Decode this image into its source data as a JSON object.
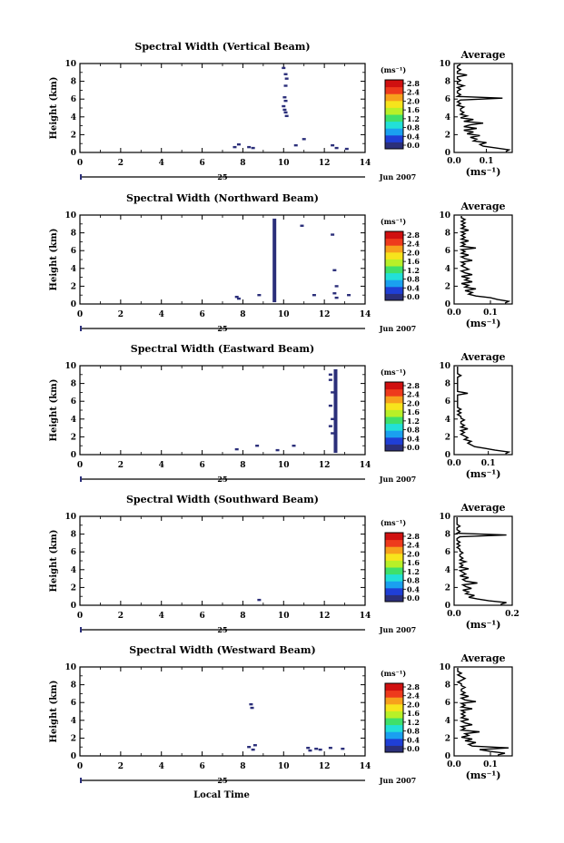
{
  "figure": {
    "xlabel": "Local Time",
    "date_label": "Jun 2007",
    "day_label": "25",
    "colorbar_unit": "(ms⁻¹)",
    "colorbar_ticks": [
      "0.0",
      "0.4",
      "0.8",
      "1.2",
      "1.6",
      "2.0",
      "2.4",
      "2.8"
    ],
    "colorbar_colors": [
      "#2b2f7a",
      "#1f3fd6",
      "#1aa0f0",
      "#22e0d8",
      "#3fe06a",
      "#b8f028",
      "#f7e41c",
      "#f7a01c",
      "#ee3a1c",
      "#d01010"
    ],
    "avg_title": "Average",
    "avg_xunit": "(ms⁻¹)",
    "data_color": "#2b2f7a"
  },
  "chart_data": [
    {
      "type": "heatmap",
      "title": "Spectral Width (Vertical Beam)",
      "ylabel": "Height (km)",
      "xlim": [
        0,
        14
      ],
      "ylim": [
        0,
        10
      ],
      "xticks": [
        "0",
        "2",
        "4",
        "6",
        "8",
        "10",
        "12",
        "14"
      ],
      "yticks": [
        "0",
        "2",
        "4",
        "6",
        "8",
        "10"
      ],
      "cells": [
        [
          7.6,
          0.6
        ],
        [
          7.8,
          0.9
        ],
        [
          8.3,
          0.6
        ],
        [
          8.5,
          0.5
        ],
        [
          10.0,
          9.5
        ],
        [
          10.1,
          8.8
        ],
        [
          10.15,
          8.3
        ],
        [
          10.1,
          7.5
        ],
        [
          10.05,
          6.2
        ],
        [
          10.1,
          5.8
        ],
        [
          10.0,
          5.2
        ],
        [
          10.05,
          4.8
        ],
        [
          10.1,
          4.5
        ],
        [
          10.15,
          4.1
        ],
        [
          10.6,
          0.8
        ],
        [
          11.0,
          1.5
        ],
        [
          12.4,
          0.8
        ],
        [
          12.6,
          0.5
        ],
        [
          13.1,
          0.4
        ]
      ],
      "avg": {
        "xlim": [
          0,
          0.18
        ],
        "xticks": [
          "0.0",
          "0.1"
        ],
        "xtick_vals": [
          0,
          0.1
        ],
        "yticks": [
          "0",
          "2",
          "4",
          "6",
          "8",
          "10"
        ],
        "profile": [
          0.16,
          0.17,
          0.13,
          0.09,
          0.08,
          0.1,
          0.06,
          0.07,
          0.05,
          0.08,
          0.04,
          0.06,
          0.03,
          0.07,
          0.03,
          0.05,
          0.09,
          0.03,
          0.06,
          0.02,
          0.04,
          0.02,
          0.03,
          0.02,
          0.02,
          0.03,
          0.01,
          0.02,
          0.01,
          0.02,
          0.15,
          0.01,
          0.02,
          0.01,
          0.01,
          0.02,
          0.01,
          0.03,
          0.01,
          0.01,
          0.02,
          0.01,
          0.01,
          0.04,
          0.01,
          0.01,
          0.02,
          0.01,
          0.01,
          0.02
        ]
      }
    },
    {
      "type": "heatmap",
      "title": "Spectral Width (Northward Beam)",
      "ylabel": "Height (km)",
      "xlim": [
        0,
        14
      ],
      "ylim": [
        0,
        10
      ],
      "xticks": [
        "0",
        "2",
        "4",
        "6",
        "8",
        "10",
        "12",
        "14"
      ],
      "yticks": [
        "0",
        "2",
        "4",
        "6",
        "8",
        "10"
      ],
      "column": {
        "x": 9.55,
        "y0": 0.2,
        "y1": 9.6
      },
      "cells": [
        [
          7.7,
          0.8
        ],
        [
          7.8,
          0.6
        ],
        [
          8.8,
          1.0
        ],
        [
          10.9,
          8.8
        ],
        [
          11.5,
          1.0
        ],
        [
          12.4,
          7.8
        ],
        [
          12.5,
          3.8
        ],
        [
          12.6,
          2.0
        ],
        [
          12.5,
          1.2
        ],
        [
          12.6,
          0.7
        ],
        [
          13.2,
          1.0
        ]
      ],
      "avg": {
        "xlim": [
          0,
          0.16
        ],
        "xticks": [
          "0.0",
          "0.1"
        ],
        "xtick_vals": [
          0,
          0.1
        ],
        "yticks": [
          "0",
          "2",
          "4",
          "6",
          "8",
          "10"
        ],
        "profile": [
          0.14,
          0.15,
          0.12,
          0.1,
          0.06,
          0.04,
          0.05,
          0.03,
          0.06,
          0.03,
          0.04,
          0.02,
          0.05,
          0.03,
          0.04,
          0.02,
          0.05,
          0.03,
          0.02,
          0.04,
          0.03,
          0.02,
          0.03,
          0.02,
          0.05,
          0.03,
          0.02,
          0.04,
          0.02,
          0.03,
          0.02,
          0.06,
          0.02,
          0.03,
          0.02,
          0.04,
          0.02,
          0.03,
          0.02,
          0.03,
          0.02,
          0.04,
          0.02,
          0.03,
          0.02,
          0.03,
          0.02,
          0.03,
          0.02,
          0.02
        ]
      }
    },
    {
      "type": "heatmap",
      "title": "Spectral Width (Eastward Beam)",
      "ylabel": "Height (km)",
      "xlim": [
        0,
        14
      ],
      "ylim": [
        0,
        10
      ],
      "xticks": [
        "0",
        "2",
        "4",
        "6",
        "8",
        "10",
        "12",
        "14"
      ],
      "yticks": [
        "0",
        "2",
        "4",
        "6",
        "8",
        "10"
      ],
      "column": {
        "x": 12.55,
        "y0": 0.2,
        "y1": 9.6
      },
      "cells": [
        [
          7.7,
          0.6
        ],
        [
          8.7,
          1.0
        ],
        [
          9.7,
          0.5
        ],
        [
          10.5,
          1.0
        ],
        [
          12.3,
          9.0
        ],
        [
          12.3,
          8.4
        ],
        [
          12.4,
          7.0
        ],
        [
          12.3,
          5.5
        ],
        [
          12.4,
          4.0
        ],
        [
          12.3,
          3.2
        ],
        [
          12.4,
          2.4
        ]
      ],
      "avg": {
        "xlim": [
          0,
          0.17
        ],
        "xticks": [
          "0.0",
          "0.1"
        ],
        "xtick_vals": [
          0,
          0.1
        ],
        "yticks": [
          "0",
          "2",
          "4",
          "6",
          "8",
          "10"
        ],
        "profile": [
          0.15,
          0.16,
          0.12,
          0.09,
          0.06,
          0.05,
          0.04,
          0.05,
          0.03,
          0.04,
          0.03,
          0.02,
          0.03,
          0.02,
          0.04,
          0.02,
          0.03,
          0.02,
          0.02,
          0.03,
          0.02,
          0.02,
          0.01,
          0.02,
          0.01,
          0.02,
          0.01,
          0.01,
          0.01,
          0.01,
          0.01,
          0.01,
          0.01,
          0.01,
          0.04,
          0.01,
          0.01,
          0.01,
          0.01,
          0.01,
          0.01,
          0.01,
          0.01,
          0.01,
          0.02,
          0.01,
          0.01,
          0.01,
          0.01,
          0.01
        ]
      }
    },
    {
      "type": "heatmap",
      "title": "Spectral Width (Southward Beam)",
      "ylabel": "Height (km)",
      "xlim": [
        0,
        14
      ],
      "ylim": [
        0,
        10
      ],
      "xticks": [
        "0",
        "2",
        "4",
        "6",
        "8",
        "10",
        "12",
        "14"
      ],
      "yticks": [
        "0",
        "2",
        "4",
        "6",
        "8",
        "10"
      ],
      "cells": [
        [
          8.8,
          0.6
        ]
      ],
      "avg": {
        "xlim": [
          0,
          0.2
        ],
        "xticks": [
          "0.0",
          "0.2"
        ],
        "xtick_vals": [
          0,
          0.2
        ],
        "yticks": [
          "0",
          "2",
          "4",
          "6",
          "8",
          "10"
        ],
        "profile": [
          0.16,
          0.18,
          0.12,
          0.08,
          0.05,
          0.07,
          0.04,
          0.05,
          0.03,
          0.06,
          0.04,
          0.03,
          0.08,
          0.04,
          0.03,
          0.05,
          0.02,
          0.04,
          0.03,
          0.02,
          0.05,
          0.02,
          0.03,
          0.02,
          0.04,
          0.02,
          0.03,
          0.02,
          0.02,
          0.03,
          0.02,
          0.02,
          0.01,
          0.02,
          0.01,
          0.02,
          0.01,
          0.01,
          0.02,
          0.18,
          0.01,
          0.02,
          0.01,
          0.01,
          0.02,
          0.01,
          0.01,
          0.01,
          0.01,
          0.01
        ]
      }
    },
    {
      "type": "heatmap",
      "title": "Spectral Width (Westward Beam)",
      "ylabel": "Height (km)",
      "xlim": [
        0,
        14
      ],
      "ylim": [
        0,
        10
      ],
      "xticks": [
        "0",
        "2",
        "4",
        "6",
        "8",
        "10",
        "12",
        "14"
      ],
      "yticks": [
        "0",
        "2",
        "4",
        "6",
        "8",
        "10"
      ],
      "cells": [
        [
          8.4,
          5.8
        ],
        [
          8.45,
          5.4
        ],
        [
          8.3,
          1.0
        ],
        [
          8.5,
          0.7
        ],
        [
          8.6,
          1.2
        ],
        [
          11.2,
          0.9
        ],
        [
          11.3,
          0.6
        ],
        [
          11.6,
          0.8
        ],
        [
          11.8,
          0.7
        ],
        [
          12.3,
          0.9
        ],
        [
          12.9,
          0.8
        ]
      ],
      "avg": {
        "xlim": [
          0,
          0.16
        ],
        "xticks": [
          "0.0",
          "0.1"
        ],
        "xtick_vals": [
          0,
          0.1
        ],
        "yticks": [
          "0",
          "2",
          "4",
          "6",
          "8",
          "10"
        ],
        "profile": [
          0.12,
          0.14,
          0.1,
          0.07,
          0.15,
          0.05,
          0.04,
          0.06,
          0.03,
          0.05,
          0.02,
          0.04,
          0.03,
          0.07,
          0.02,
          0.03,
          0.02,
          0.05,
          0.03,
          0.02,
          0.04,
          0.02,
          0.03,
          0.02,
          0.03,
          0.02,
          0.05,
          0.02,
          0.03,
          0.02,
          0.06,
          0.03,
          0.02,
          0.04,
          0.02,
          0.03,
          0.02,
          0.02,
          0.03,
          0.02,
          0.02,
          0.01,
          0.02,
          0.03,
          0.02,
          0.01,
          0.02,
          0.01,
          0.01,
          0.01
        ]
      }
    }
  ]
}
